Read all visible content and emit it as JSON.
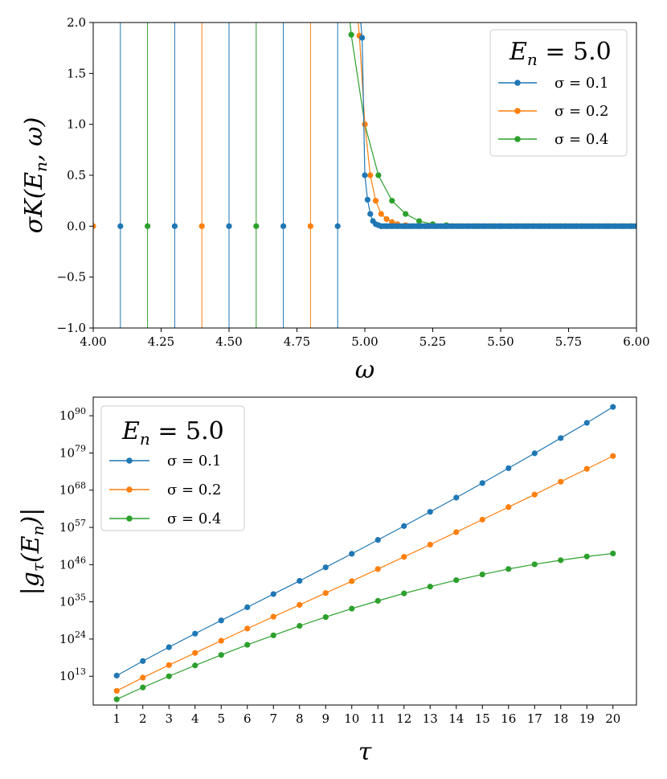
{
  "colors": {
    "s1": "#1f77b4",
    "s2": "#ff7f0e",
    "s3": "#2ca02c"
  },
  "chart_data": [
    {
      "type": "line",
      "title": "",
      "xlabel": "ω",
      "ylabel": "σK(E_n, ω)",
      "xlim": [
        4.0,
        6.0
      ],
      "ylim": [
        -1.0,
        2.0
      ],
      "xticks": [
        "4.00",
        "4.25",
        "4.50",
        "4.75",
        "5.00",
        "5.25",
        "5.50",
        "5.75",
        "6.00"
      ],
      "yticks": [
        "−1.0",
        "−0.5",
        "0.0",
        "0.5",
        "1.0",
        "1.5",
        "2.0"
      ],
      "legend": {
        "title": "E_n = 5.0",
        "position": "top-right",
        "entries": [
          "σ = 0.1",
          "σ = 0.2",
          "σ = 0.4"
        ]
      },
      "series": [
        {
          "name": "σ = 0.1",
          "sigma": 0.1,
          "description": "Oscillates with vertical spikes at ω = 4.1, 4.3, ..., 4.9 (zero at grid points), then sharp drop through 0.5 at ω=5.0 to ~0 by ω≈5.07",
          "x": [
            4.1,
            4.3,
            4.5,
            4.7,
            4.9,
            4.99,
            5.0,
            5.01,
            5.02,
            5.03,
            5.04,
            5.05,
            5.06,
            5.08,
            5.1,
            5.15,
            5.2,
            5.3,
            5.5,
            6.0
          ],
          "y": [
            0.0,
            0.0,
            0.0,
            0.0,
            0.0,
            1.85,
            0.5,
            0.26,
            0.12,
            0.05,
            0.02,
            0.01,
            0.0,
            0.0,
            0.0,
            0.0,
            0.0,
            0.0,
            0.0,
            0.0
          ]
        },
        {
          "name": "σ = 0.2",
          "sigma": 0.2,
          "description": "Vertical spikes at ω = 4.0, 4.4, 4.8 region; drop from 1.87 at 4.98 through 0.5 at 5.02 to ~0 by 5.15",
          "x": [
            4.0,
            4.4,
            4.8,
            4.98,
            5.0,
            5.02,
            5.04,
            5.06,
            5.08,
            5.1,
            5.12,
            5.15,
            5.2,
            5.3,
            5.5,
            6.0
          ],
          "y": [
            0.0,
            0.0,
            0.0,
            1.87,
            1.0,
            0.5,
            0.25,
            0.12,
            0.07,
            0.04,
            0.02,
            0.01,
            0.0,
            0.0,
            0.0,
            0.0
          ]
        },
        {
          "name": "σ = 0.4",
          "sigma": 0.4,
          "description": "Vertical spikes at ω = 4.2, 4.6; drop from 1.88 at 4.95 through 1.0 at 5.0 to ~0 by 5.3",
          "x": [
            4.2,
            4.6,
            4.95,
            5.0,
            5.05,
            5.1,
            5.15,
            5.2,
            5.25,
            5.3,
            5.4,
            5.5,
            6.0
          ],
          "y": [
            0.0,
            0.0,
            1.88,
            1.0,
            0.5,
            0.25,
            0.12,
            0.05,
            0.02,
            0.01,
            0.0,
            0.0,
            0.0
          ]
        }
      ]
    },
    {
      "type": "line",
      "title": "",
      "xlabel": "τ",
      "ylabel": "|g_τ(E_n)|",
      "yscale": "log",
      "xlim": [
        0.1,
        20.9
      ],
      "ylim_exponent": [
        4.5,
        95.5
      ],
      "xticks": [
        "1",
        "2",
        "3",
        "4",
        "5",
        "6",
        "7",
        "8",
        "9",
        "10",
        "11",
        "12",
        "13",
        "14",
        "15",
        "16",
        "17",
        "18",
        "19",
        "20"
      ],
      "yticks": [
        {
          "base": "10",
          "exp": "13"
        },
        {
          "base": "10",
          "exp": "24"
        },
        {
          "base": "10",
          "exp": "35"
        },
        {
          "base": "10",
          "exp": "46"
        },
        {
          "base": "10",
          "exp": "57"
        },
        {
          "base": "10",
          "exp": "68"
        },
        {
          "base": "10",
          "exp": "79"
        },
        {
          "base": "10",
          "exp": "90"
        }
      ],
      "legend": {
        "title": "E_n = 5.0",
        "position": "top-left",
        "entries": [
          "σ = 0.1",
          "σ = 0.2",
          "σ = 0.4"
        ]
      },
      "x": [
        1,
        2,
        3,
        4,
        5,
        6,
        7,
        8,
        9,
        10,
        11,
        12,
        13,
        14,
        15,
        16,
        17,
        18,
        19,
        20
      ],
      "series": [
        {
          "name": "σ = 0.1",
          "log10_values": [
            13.2,
            17.5,
            21.6,
            25.6,
            29.5,
            33.4,
            37.3,
            41.2,
            45.2,
            49.2,
            53.3,
            57.4,
            61.6,
            65.8,
            70.1,
            74.5,
            78.9,
            83.4,
            87.9,
            92.6
          ]
        },
        {
          "name": "σ = 0.2",
          "log10_values": [
            8.7,
            12.6,
            16.3,
            19.9,
            23.5,
            27.1,
            30.6,
            34.1,
            37.6,
            41.1,
            44.7,
            48.3,
            51.9,
            55.6,
            59.3,
            63.0,
            66.7,
            70.5,
            74.3,
            78.1
          ]
        },
        {
          "name": "σ = 0.4",
          "log10_values": [
            6.2,
            9.7,
            13.0,
            16.2,
            19.3,
            22.3,
            25.1,
            27.9,
            30.5,
            33.0,
            35.3,
            37.5,
            39.5,
            41.4,
            43.1,
            44.7,
            46.1,
            47.3,
            48.4,
            49.3
          ]
        }
      ]
    }
  ]
}
